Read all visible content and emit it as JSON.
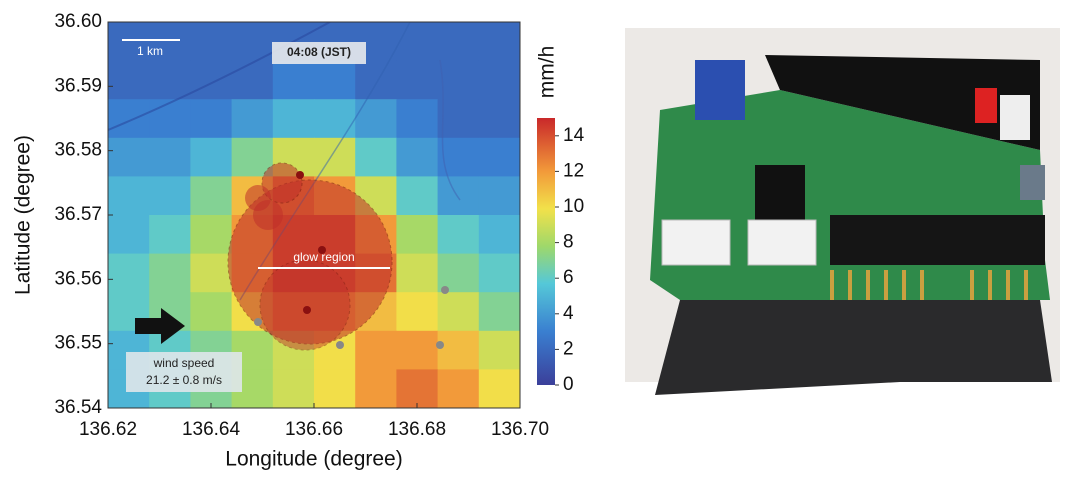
{
  "chart_data": {
    "type": "heatmap",
    "xlabel": "Longitude (degree)",
    "ylabel": "Latitude (degree)",
    "xlim": [
      136.62,
      136.7
    ],
    "ylim": [
      36.54,
      36.6
    ],
    "xticks": [
      136.62,
      136.64,
      136.66,
      136.68,
      {
        "value": 136.7,
        "label": "136.70"
      }
    ],
    "yticks": [
      36.54,
      36.55,
      36.56,
      36.57,
      36.58,
      36.59,
      {
        "value": 36.6,
        "label": "36.60"
      }
    ],
    "colorbar_label": "mm/h",
    "clim": [
      0,
      15
    ],
    "cticks": [
      0,
      2,
      4,
      6,
      8,
      10,
      12,
      14
    ],
    "z": [
      [
        2,
        2,
        2,
        2,
        2,
        2,
        2,
        2,
        2,
        2
      ],
      [
        2,
        2,
        2,
        2,
        3,
        3,
        2,
        2,
        2,
        2
      ],
      [
        3,
        3,
        3,
        4,
        5,
        5,
        4,
        3,
        2,
        2
      ],
      [
        4,
        4,
        5,
        7,
        9,
        9,
        6,
        4,
        3,
        3
      ],
      [
        5,
        5,
        7,
        11,
        13,
        12,
        9,
        6,
        4,
        4
      ],
      [
        5,
        6,
        8,
        12,
        14,
        14,
        12,
        8,
        6,
        5
      ],
      [
        6,
        7,
        9,
        12,
        14,
        14,
        13,
        9,
        7,
        6
      ],
      [
        6,
        7,
        8,
        10,
        12,
        12,
        11,
        10,
        9,
        7
      ],
      [
        5,
        6,
        7,
        8,
        9,
        10,
        12,
        12,
        11,
        9
      ],
      [
        5,
        6,
        7,
        8,
        9,
        10,
        12,
        13,
        12,
        10
      ]
    ],
    "annotations": [
      "1 km",
      "04:08 (JST)",
      "glow region",
      "wind speed",
      "21.2 ± 0.8 m/s"
    ]
  }
}
